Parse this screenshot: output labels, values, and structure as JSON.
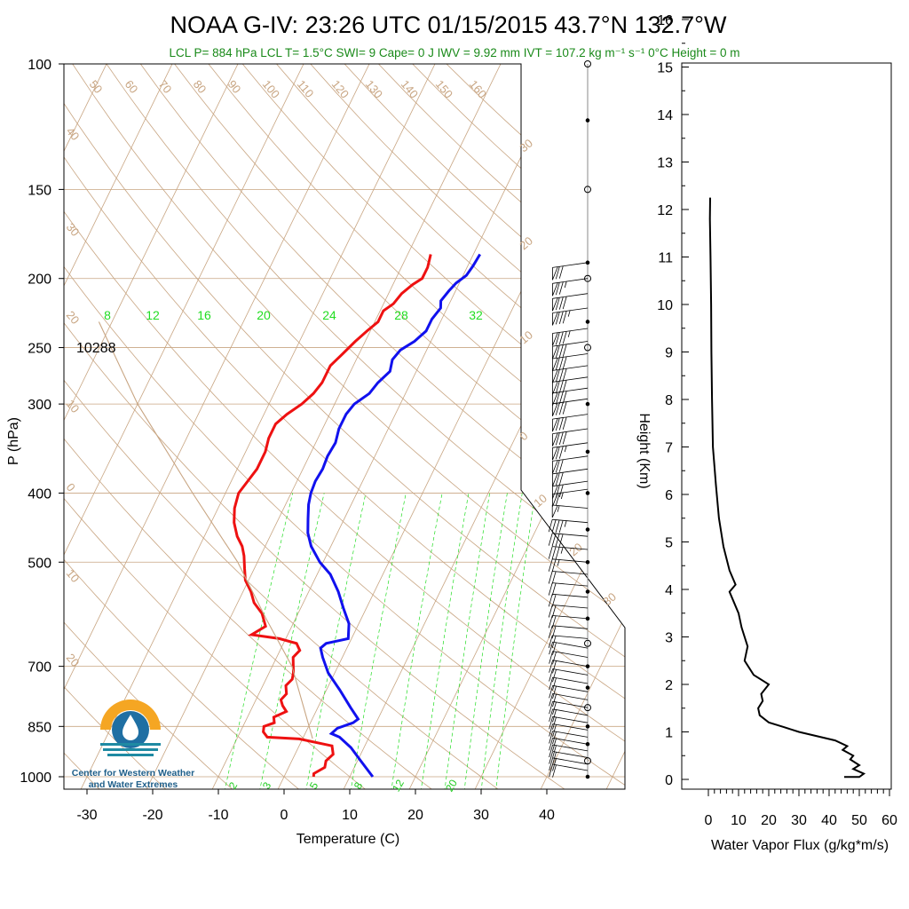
{
  "title": "NOAA G-IV: 23:26 UTC 01/15/2015  43.7°N 132.7°W",
  "subtitle": "LCL P= 884 hPa  LCL T= 1.5°C  SWI= 9  Cape= 0 J  IWV = 9.92 mm  IVT = 107.2 kg m⁻¹ s⁻¹  0°C Height = 0 m",
  "logo": {
    "line1": "Center for Western Weather",
    "line2": "and Water Extremes"
  },
  "colors": {
    "temperature": "#ee1111",
    "dewpoint": "#1111ee",
    "isotherm": "#c8a582",
    "mixing_ratio": "#22dd22",
    "parcel": "#c8a582"
  },
  "chart_data": [
    {
      "type": "line",
      "name": "skew-t",
      "xlabel": "Temperature (C)",
      "ylabel": "P (hPa)",
      "y_scale": "log",
      "ylim": [
        1000,
        100
      ],
      "xlim": [
        -33,
        52
      ],
      "x_ticks": [
        -30,
        -20,
        -10,
        0,
        10,
        20,
        30,
        40
      ],
      "y_ticks": [
        100,
        150,
        200,
        250,
        300,
        400,
        500,
        700,
        850,
        1000
      ],
      "height_label": "10288",
      "isotherm_labels_left": [
        "50",
        "60",
        "70",
        "80",
        "90",
        "100",
        "110",
        "120",
        "130",
        "140",
        "150",
        "160"
      ],
      "dry_adiabat_labels": [
        "40",
        "30",
        "20",
        "10",
        "0",
        "10",
        "20"
      ],
      "right_edge_labels": [
        "30",
        "20",
        "10",
        "0",
        "10",
        "20",
        "30"
      ],
      "mixing_ratio_labels_top": [
        "8",
        "12",
        "16",
        "20",
        "24",
        "28",
        "32"
      ],
      "mixing_ratio_labels_bottom": [
        "2",
        "3",
        "5",
        "8",
        "12",
        "20"
      ],
      "series": [
        {
          "key": "temperature",
          "points": [
            [
              4.5,
              1000
            ],
            [
              4.3,
              990
            ],
            [
              5.5,
              970
            ],
            [
              5.2,
              950
            ],
            [
              5.8,
              930
            ],
            [
              5.0,
              905
            ],
            [
              -0.5,
              885
            ],
            [
              -5.5,
              880
            ],
            [
              -6.5,
              865
            ],
            [
              -6.8,
              850
            ],
            [
              -5.5,
              840
            ],
            [
              -6.0,
              825
            ],
            [
              -4.5,
              810
            ],
            [
              -5.5,
              795
            ],
            [
              -6.2,
              780
            ],
            [
              -5.8,
              765
            ],
            [
              -6.5,
              745
            ],
            [
              -6.0,
              730
            ],
            [
              -6.3,
              715
            ],
            [
              -6.8,
              700
            ],
            [
              -7.5,
              680
            ],
            [
              -7.0,
              665
            ],
            [
              -8.0,
              650
            ],
            [
              -11.0,
              640
            ],
            [
              -15.5,
              632
            ],
            [
              -14.0,
              615
            ],
            [
              -15.5,
              590
            ],
            [
              -17.5,
              570
            ],
            [
              -18.8,
              550
            ],
            [
              -20.5,
              530
            ],
            [
              -21.5,
              510
            ],
            [
              -22.5,
              490
            ],
            [
              -23.5,
              475
            ],
            [
              -25.0,
              460
            ],
            [
              -26.5,
              440
            ],
            [
              -27.5,
              420
            ],
            [
              -28.0,
              400
            ],
            [
              -27.5,
              385
            ],
            [
              -27.0,
              370
            ],
            [
              -27.0,
              350
            ],
            [
              -27.5,
              335
            ],
            [
              -27.5,
              320
            ],
            [
              -26.5,
              310
            ],
            [
              -25.0,
              300
            ],
            [
              -24.0,
              290
            ],
            [
              -23.5,
              280
            ],
            [
              -23.5,
              265
            ],
            [
              -22.5,
              255
            ],
            [
              -21.5,
              245
            ],
            [
              -20.5,
              237
            ],
            [
              -19.5,
              230
            ],
            [
              -19.5,
              222
            ],
            [
              -18.5,
              217
            ],
            [
              -18.0,
              210
            ],
            [
              -17.0,
              204
            ],
            [
              -16.0,
              200
            ],
            [
              -16.0,
              193
            ],
            [
              -16.5,
              185
            ]
          ]
        },
        {
          "key": "dewpoint",
          "points": [
            [
              13.5,
              1000
            ],
            [
              10.5,
              950
            ],
            [
              8.0,
              910
            ],
            [
              5.5,
              880
            ],
            [
              4.0,
              870
            ],
            [
              4.5,
              855
            ],
            [
              6.5,
              840
            ],
            [
              7.0,
              830
            ],
            [
              5.0,
              800
            ],
            [
              2.0,
              755
            ],
            [
              -1.0,
              715
            ],
            [
              -3.0,
              680
            ],
            [
              -4.0,
              660
            ],
            [
              -3.5,
              650
            ],
            [
              -0.5,
              640
            ],
            [
              -1.5,
              610
            ],
            [
              -3.5,
              580
            ],
            [
              -5.5,
              550
            ],
            [
              -8.0,
              520
            ],
            [
              -10.5,
              500
            ],
            [
              -13.0,
              475
            ],
            [
              -14.5,
              455
            ],
            [
              -15.5,
              435
            ],
            [
              -16.5,
              415
            ],
            [
              -17.0,
              400
            ],
            [
              -17.2,
              385
            ],
            [
              -17.0,
              370
            ],
            [
              -17.2,
              355
            ],
            [
              -17.0,
              340
            ],
            [
              -17.5,
              325
            ],
            [
              -17.5,
              310
            ],
            [
              -17.0,
              300
            ],
            [
              -15.5,
              290
            ],
            [
              -15.0,
              280
            ],
            [
              -14.0,
              270
            ],
            [
              -14.5,
              260
            ],
            [
              -14.0,
              252
            ],
            [
              -12.5,
              245
            ],
            [
              -11.5,
              237
            ],
            [
              -11.5,
              228
            ],
            [
              -11.0,
              220
            ],
            [
              -11.5,
              215
            ],
            [
              -11.0,
              208
            ],
            [
              -10.5,
              203
            ],
            [
              -9.5,
              198
            ],
            [
              -9.2,
              192
            ],
            [
              -9.0,
              185
            ]
          ]
        },
        {
          "key": "parcel",
          "points": [
            [
              1.5,
              884
            ],
            [
              -7.0,
              700
            ],
            [
              -14.5,
              600
            ],
            [
              -23.0,
              500
            ],
            [
              -35.0,
              400
            ],
            [
              -50.0,
              300
            ],
            [
              -62.0,
              230
            ]
          ]
        }
      ],
      "wind_barbs": {
        "levels_hpa": [
          190,
          200,
          210,
          220,
          235,
          245,
          255,
          265,
          275,
          285,
          295,
          310,
          325,
          340,
          355,
          370,
          385,
          395,
          420,
          440,
          460,
          480,
          500,
          520,
          540,
          560,
          580,
          600,
          620,
          640,
          660,
          680,
          700,
          720,
          740,
          760,
          780,
          800,
          820,
          840,
          860,
          880,
          900,
          920,
          940,
          960,
          980
        ],
        "speeds_kt": [
          70,
          75,
          80,
          85,
          85,
          80,
          80,
          80,
          80,
          80,
          80,
          80,
          80,
          75,
          70,
          70,
          70,
          65,
          55,
          45,
          40,
          35,
          25,
          20,
          20,
          20,
          20,
          20,
          20,
          20,
          20,
          20,
          20,
          20,
          20,
          20,
          20,
          20,
          20,
          20,
          20,
          20,
          20,
          20,
          20,
          20,
          20
        ]
      }
    },
    {
      "type": "line",
      "name": "water-vapor-flux",
      "xlabel": "Water Vapor Flux (g/kg*m/s)",
      "ylabel": "Height (Km)",
      "xlim": [
        0,
        60
      ],
      "ylim": [
        -0.2,
        16.5
      ],
      "x_ticks": [
        0,
        10,
        20,
        30,
        40,
        50,
        60
      ],
      "y_ticks": [
        0,
        1,
        2,
        3,
        4,
        5,
        6,
        7,
        8,
        9,
        10,
        11,
        12,
        13,
        14,
        15,
        16
      ],
      "points": [
        [
          45,
          0.05
        ],
        [
          50,
          0.05
        ],
        [
          51.5,
          0.12
        ],
        [
          48,
          0.22
        ],
        [
          50,
          0.3
        ],
        [
          47,
          0.42
        ],
        [
          48,
          0.5
        ],
        [
          44.5,
          0.62
        ],
        [
          46,
          0.7
        ],
        [
          42,
          0.82
        ],
        [
          30,
          1.0
        ],
        [
          25,
          1.1
        ],
        [
          20,
          1.2
        ],
        [
          17,
          1.35
        ],
        [
          16.5,
          1.5
        ],
        [
          18,
          1.65
        ],
        [
          17.5,
          1.8
        ],
        [
          20,
          2.0
        ],
        [
          18,
          2.08
        ],
        [
          15,
          2.2
        ],
        [
          12,
          2.5
        ],
        [
          13,
          2.8
        ],
        [
          11,
          3.2
        ],
        [
          10,
          3.5
        ],
        [
          8,
          3.8
        ],
        [
          7,
          3.95
        ],
        [
          9,
          4.1
        ],
        [
          7,
          4.4
        ],
        [
          5,
          4.9
        ],
        [
          3.5,
          5.5
        ],
        [
          2.5,
          6.2
        ],
        [
          1.5,
          7.0
        ],
        [
          1.2,
          8.0
        ],
        [
          1.0,
          9.0
        ],
        [
          0.9,
          10.0
        ],
        [
          0.7,
          11.0
        ],
        [
          0.5,
          11.8
        ],
        [
          0.6,
          12.25
        ]
      ]
    }
  ]
}
